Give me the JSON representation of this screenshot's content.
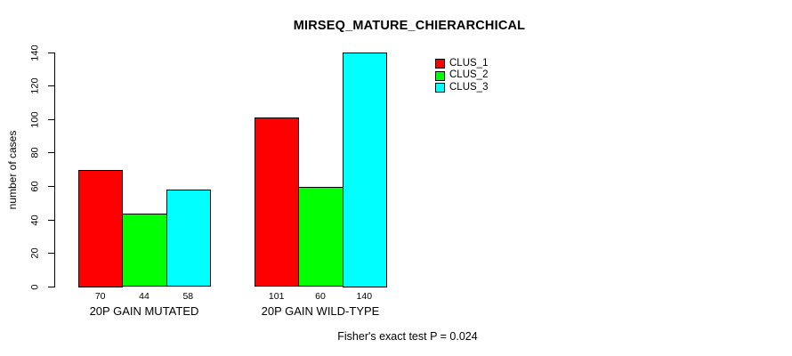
{
  "chart_data": {
    "type": "bar",
    "title": "MIRSEQ_MATURE_CHIERARCHICAL",
    "ylabel": "number of cases",
    "xlabel": "",
    "footnote": "Fisher's exact test P = 0.024",
    "categories": [
      "20P GAIN MUTATED",
      "20P GAIN WILD-TYPE"
    ],
    "series": [
      {
        "name": "CLUS_1",
        "color": "#ff0000",
        "values": [
          70,
          101
        ]
      },
      {
        "name": "CLUS_2",
        "color": "#00ff00",
        "values": [
          44,
          60
        ]
      },
      {
        "name": "CLUS_3",
        "color": "#00ffff",
        "values": [
          58,
          140
        ]
      }
    ],
    "bar_value_labels": [
      [
        70,
        44,
        58
      ],
      [
        101,
        60,
        140
      ]
    ],
    "ylim": [
      0,
      140
    ],
    "yticks": [
      0,
      20,
      40,
      60,
      80,
      100,
      120,
      140
    ],
    "legend_position": "top-right",
    "grid": false,
    "colors": {
      "background": "#ffffff",
      "axis": "#000000",
      "text": "#000000",
      "bar_border": "#000000"
    }
  }
}
